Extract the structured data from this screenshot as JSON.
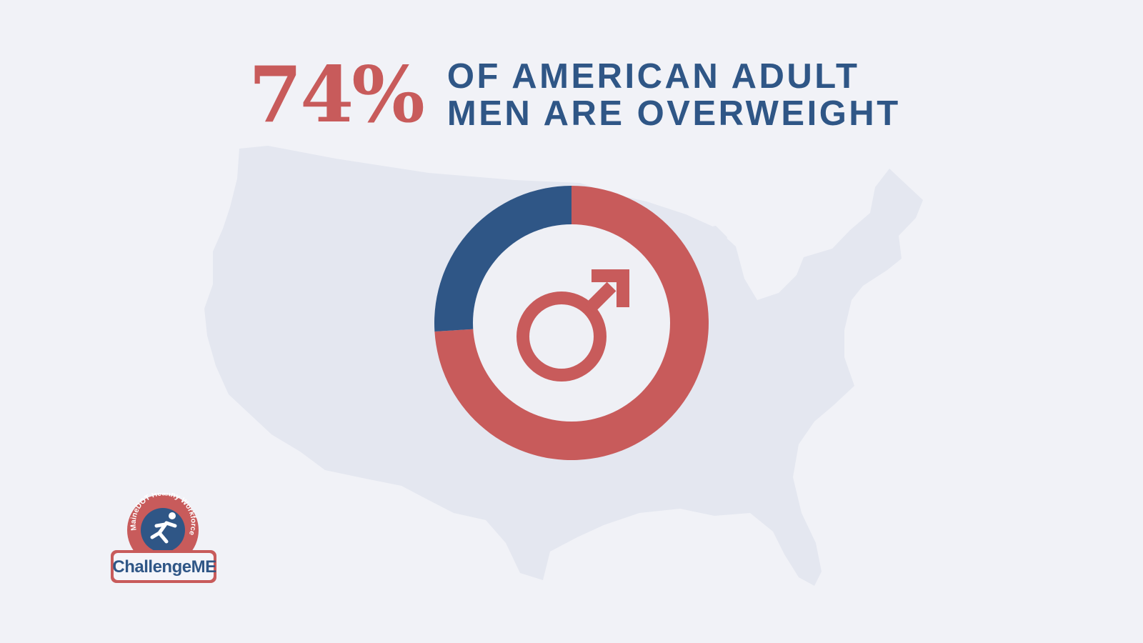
{
  "colors": {
    "background": "#f1f2f7",
    "map": "#e4e7f0",
    "accent_red": "#c85b5b",
    "accent_blue": "#2f5686",
    "inner_circle": "#eff0f5"
  },
  "headline": {
    "stat": "74%",
    "line1": "OF AMERICAN ADULT",
    "line2": "MEN ARE OVERWEIGHT"
  },
  "icons": {
    "background_map": "usa-map-silhouette",
    "center_symbol": "male-symbol-icon",
    "logo_figure": "running-person-icon"
  },
  "chart_data": {
    "type": "pie",
    "variant": "donut",
    "series": [
      {
        "value": 74,
        "color": "#c85b5b"
      },
      {
        "value": 26,
        "color": "#2f5686"
      }
    ]
  },
  "logo": {
    "arc_text": "MaineDOT Healthy Workforce",
    "wordmark": "ChallengeME"
  }
}
